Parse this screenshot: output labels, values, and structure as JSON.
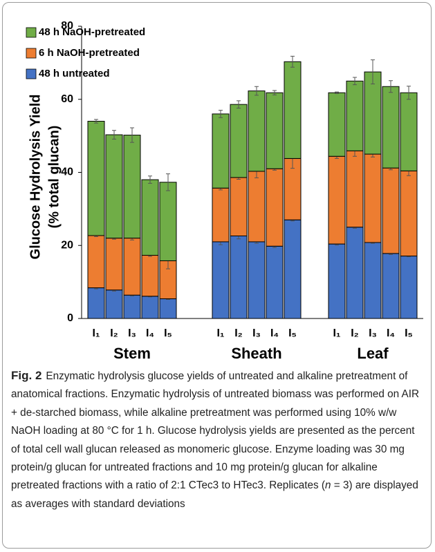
{
  "chart_data": {
    "type": "stacked_bar",
    "y_label_lines": [
      "Glucose Hydrolysis Yield",
      "(% total glucan)"
    ],
    "categories": [
      "I₁",
      "I₂",
      "I₃",
      "I₄",
      "I₅",
      "I₁",
      "I₂",
      "I₃",
      "I₄",
      "I₅",
      "I₁",
      "I₂",
      "I₃",
      "I₄",
      "I₅"
    ],
    "groups": [
      "Stem",
      "Sheath",
      "Leaf"
    ],
    "ylim": [
      0,
      80
    ],
    "yticks": [
      0,
      20,
      40,
      60,
      80
    ],
    "legend": "top-left",
    "series": [
      {
        "name": "48 h untreated",
        "color": "#4472c4",
        "values": [
          8.4,
          7.8,
          6.4,
          6.1,
          5.4,
          21.0,
          22.6,
          21.0,
          19.8,
          27.0,
          20.4,
          25.0,
          20.8,
          17.8,
          17.1
        ],
        "errors": [
          0.3,
          0.3,
          0.2,
          0.2,
          0.2,
          0.8,
          0.8,
          0.4,
          0.4,
          0.3,
          0.3,
          0.3,
          0.2,
          0.3,
          0.2
        ]
      },
      {
        "name": "6 h NaOH-pretreated",
        "color": "#ed7d31",
        "values": [
          14.3,
          14.2,
          15.6,
          11.2,
          10.4,
          14.7,
          16.0,
          19.3,
          21.2,
          16.8,
          24.0,
          20.9,
          24.2,
          23.4,
          23.3
        ],
        "errors": [
          0.3,
          0.3,
          0.5,
          0.3,
          2.2,
          0.5,
          0.5,
          1.8,
          0.4,
          2.7,
          0.6,
          1.5,
          0.8,
          0.5,
          1.3
        ]
      },
      {
        "name": "48 h NaOH-pretreated",
        "color": "#70ad47",
        "values": [
          31.3,
          28.3,
          28.2,
          20.7,
          21.5,
          20.3,
          20.0,
          22.0,
          20.8,
          26.5,
          17.4,
          19.1,
          22.5,
          22.3,
          21.4
        ],
        "errors": [
          0.5,
          1.2,
          2.0,
          1.0,
          2.3,
          1.0,
          1.0,
          1.2,
          0.6,
          1.5,
          0.2,
          1.0,
          3.3,
          1.6,
          1.8
        ]
      }
    ]
  },
  "caption": {
    "label": "Fig. 2",
    "parts": [
      "Enzymatic hydrolysis glucose yields of untreated and alkaline pretreatment of anatomical fractions. Enzymatic hydrolysis of untreated biomass was performed on AIR + de-starched biomass, while alkaline pretreatment was performed using 10% w/w NaOH loading at 80 °C for 1 h. Glucose hydrolysis yields are presented as the percent of total cell wall glucan released as monomeric glucose. Enzyme loading was 30 mg protein/g glucan for untreated fractions and 10 mg protein/g glucan for alkaline pretreated fractions with a ratio of 2:1 CTec3 to HTec3. Replicates (",
      "n",
      " = 3) are displayed as averages with standard deviations"
    ]
  }
}
